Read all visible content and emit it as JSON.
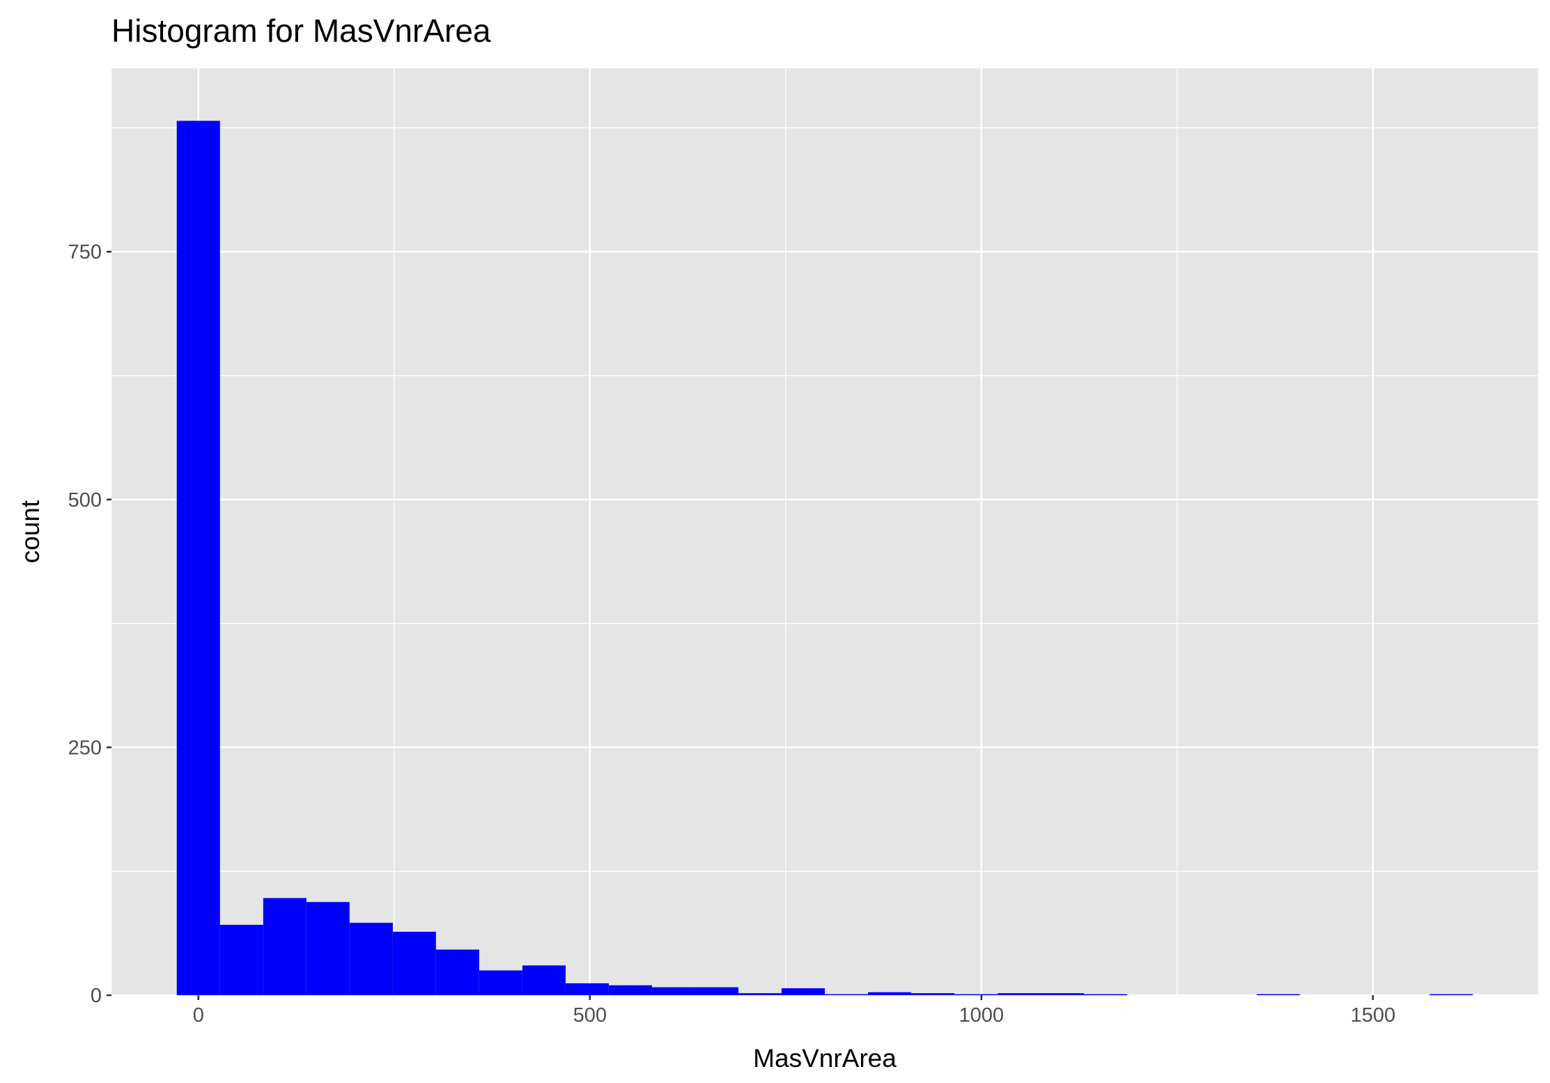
{
  "chart_data": {
    "type": "bar",
    "title": "Histogram for MasVnrArea",
    "xlabel": "MasVnrArea",
    "ylabel": "count",
    "xlim": [
      -111,
      1711
    ],
    "ylim": [
      0,
      935
    ],
    "xticks": [
      0,
      500,
      1000,
      1500
    ],
    "xtick_labels": [
      "0",
      "500",
      "1000",
      "1500"
    ],
    "yticks": [
      0,
      250,
      500,
      750
    ],
    "ytick_labels": [
      "0",
      "250",
      "500",
      "750"
    ],
    "grid": true,
    "bar_color": "#0000ff",
    "panel_color": "#e5e5e5",
    "grid_color": "#ffffff",
    "bin_width": 55.17,
    "bins": [
      {
        "start": -27.6,
        "end": 27.6,
        "count": 882
      },
      {
        "start": 27.6,
        "end": 82.8,
        "count": 71
      },
      {
        "start": 82.8,
        "end": 137.9,
        "count": 98
      },
      {
        "start": 137.9,
        "end": 193.1,
        "count": 94
      },
      {
        "start": 193.1,
        "end": 248.3,
        "count": 73
      },
      {
        "start": 248.3,
        "end": 303.4,
        "count": 64
      },
      {
        "start": 303.4,
        "end": 358.6,
        "count": 46
      },
      {
        "start": 358.6,
        "end": 413.8,
        "count": 25
      },
      {
        "start": 413.8,
        "end": 469.0,
        "count": 30
      },
      {
        "start": 469.0,
        "end": 524.1,
        "count": 12
      },
      {
        "start": 524.1,
        "end": 579.3,
        "count": 10
      },
      {
        "start": 579.3,
        "end": 634.5,
        "count": 8
      },
      {
        "start": 634.5,
        "end": 689.7,
        "count": 8
      },
      {
        "start": 689.7,
        "end": 744.8,
        "count": 2
      },
      {
        "start": 744.8,
        "end": 800.0,
        "count": 7
      },
      {
        "start": 800.0,
        "end": 855.2,
        "count": 1
      },
      {
        "start": 855.2,
        "end": 910.3,
        "count": 3
      },
      {
        "start": 910.3,
        "end": 965.5,
        "count": 2
      },
      {
        "start": 965.5,
        "end": 1020.7,
        "count": 1
      },
      {
        "start": 1020.7,
        "end": 1075.9,
        "count": 2
      },
      {
        "start": 1075.9,
        "end": 1131.0,
        "count": 2
      },
      {
        "start": 1131.0,
        "end": 1186.2,
        "count": 1
      },
      {
        "start": 1186.2,
        "end": 1241.4,
        "count": 0
      },
      {
        "start": 1241.4,
        "end": 1296.6,
        "count": 0
      },
      {
        "start": 1296.6,
        "end": 1351.7,
        "count": 0
      },
      {
        "start": 1351.7,
        "end": 1406.9,
        "count": 1
      },
      {
        "start": 1406.9,
        "end": 1462.1,
        "count": 0
      },
      {
        "start": 1462.1,
        "end": 1517.2,
        "count": 0
      },
      {
        "start": 1517.2,
        "end": 1572.4,
        "count": 0
      },
      {
        "start": 1572.4,
        "end": 1627.6,
        "count": 1
      }
    ]
  }
}
